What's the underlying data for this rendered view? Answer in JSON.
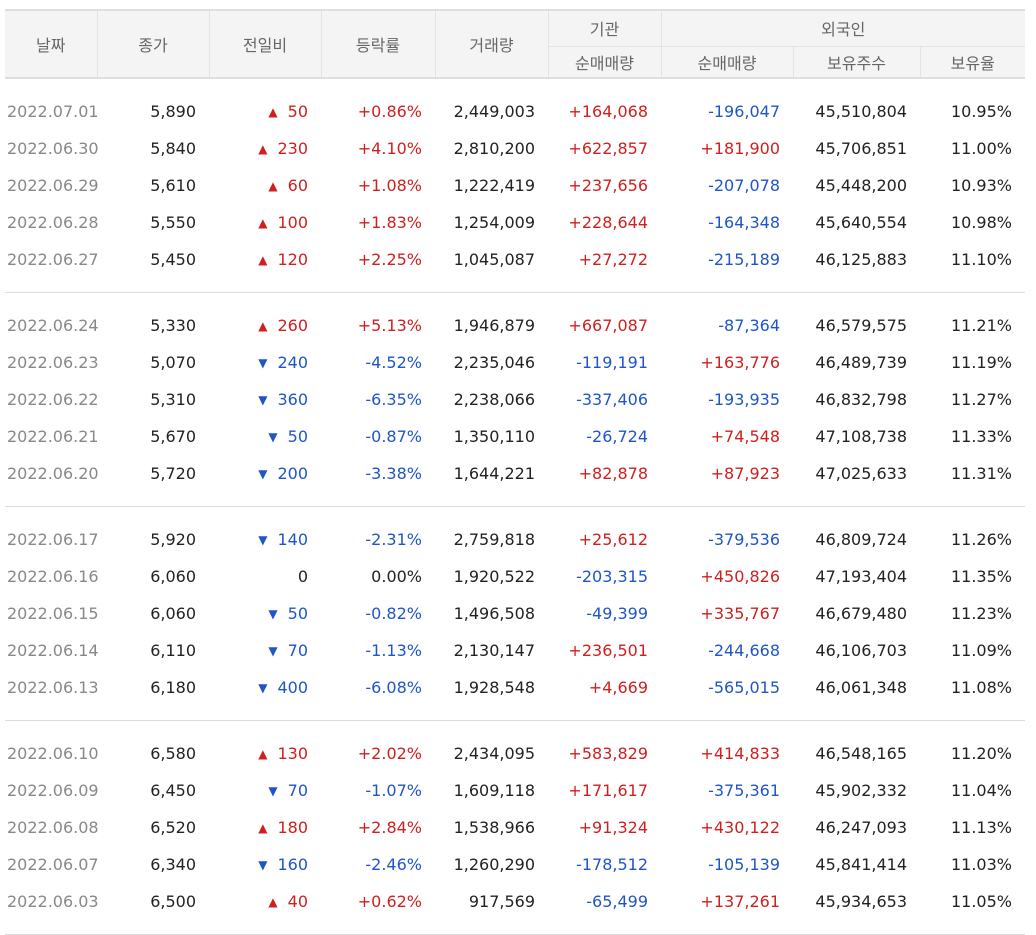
{
  "headers": {
    "date": "날짜",
    "close": "종가",
    "change": "전일비",
    "rate": "등락률",
    "volume": "거래량",
    "institution": "기관",
    "foreign": "외국인",
    "inst_net": "순매매량",
    "foreign_net": "순매매량",
    "holdings": "보유주수",
    "holding_ratio": "보유율"
  },
  "groups": [
    [
      {
        "date": "2022.07.01",
        "close": "5,890",
        "dir": "up",
        "change": "50",
        "rate": "+0.86%",
        "volume": "2,449,003",
        "inst": "+164,068",
        "foreign": "-196,047",
        "holdings": "45,510,804",
        "ratio": "10.95%"
      },
      {
        "date": "2022.06.30",
        "close": "5,840",
        "dir": "up",
        "change": "230",
        "rate": "+4.10%",
        "volume": "2,810,200",
        "inst": "+622,857",
        "foreign": "+181,900",
        "holdings": "45,706,851",
        "ratio": "11.00%"
      },
      {
        "date": "2022.06.29",
        "close": "5,610",
        "dir": "up",
        "change": "60",
        "rate": "+1.08%",
        "volume": "1,222,419",
        "inst": "+237,656",
        "foreign": "-207,078",
        "holdings": "45,448,200",
        "ratio": "10.93%"
      },
      {
        "date": "2022.06.28",
        "close": "5,550",
        "dir": "up",
        "change": "100",
        "rate": "+1.83%",
        "volume": "1,254,009",
        "inst": "+228,644",
        "foreign": "-164,348",
        "holdings": "45,640,554",
        "ratio": "10.98%"
      },
      {
        "date": "2022.06.27",
        "close": "5,450",
        "dir": "up",
        "change": "120",
        "rate": "+2.25%",
        "volume": "1,045,087",
        "inst": "+27,272",
        "foreign": "-215,189",
        "holdings": "46,125,883",
        "ratio": "11.10%"
      }
    ],
    [
      {
        "date": "2022.06.24",
        "close": "5,330",
        "dir": "up",
        "change": "260",
        "rate": "+5.13%",
        "volume": "1,946,879",
        "inst": "+667,087",
        "foreign": "-87,364",
        "holdings": "46,579,575",
        "ratio": "11.21%"
      },
      {
        "date": "2022.06.23",
        "close": "5,070",
        "dir": "down",
        "change": "240",
        "rate": "-4.52%",
        "volume": "2,235,046",
        "inst": "-119,191",
        "foreign": "+163,776",
        "holdings": "46,489,739",
        "ratio": "11.19%"
      },
      {
        "date": "2022.06.22",
        "close": "5,310",
        "dir": "down",
        "change": "360",
        "rate": "-6.35%",
        "volume": "2,238,066",
        "inst": "-337,406",
        "foreign": "-193,935",
        "holdings": "46,832,798",
        "ratio": "11.27%"
      },
      {
        "date": "2022.06.21",
        "close": "5,670",
        "dir": "down",
        "change": "50",
        "rate": "-0.87%",
        "volume": "1,350,110",
        "inst": "-26,724",
        "foreign": "+74,548",
        "holdings": "47,108,738",
        "ratio": "11.33%"
      },
      {
        "date": "2022.06.20",
        "close": "5,720",
        "dir": "down",
        "change": "200",
        "rate": "-3.38%",
        "volume": "1,644,221",
        "inst": "+82,878",
        "foreign": "+87,923",
        "holdings": "47,025,633",
        "ratio": "11.31%"
      }
    ],
    [
      {
        "date": "2022.06.17",
        "close": "5,920",
        "dir": "down",
        "change": "140",
        "rate": "-2.31%",
        "volume": "2,759,818",
        "inst": "+25,612",
        "foreign": "-379,536",
        "holdings": "46,809,724",
        "ratio": "11.26%"
      },
      {
        "date": "2022.06.16",
        "close": "6,060",
        "dir": "none",
        "change": "0",
        "rate": "0.00%",
        "volume": "1,920,522",
        "inst": "-203,315",
        "foreign": "+450,826",
        "holdings": "47,193,404",
        "ratio": "11.35%"
      },
      {
        "date": "2022.06.15",
        "close": "6,060",
        "dir": "down",
        "change": "50",
        "rate": "-0.82%",
        "volume": "1,496,508",
        "inst": "-49,399",
        "foreign": "+335,767",
        "holdings": "46,679,480",
        "ratio": "11.23%"
      },
      {
        "date": "2022.06.14",
        "close": "6,110",
        "dir": "down",
        "change": "70",
        "rate": "-1.13%",
        "volume": "2,130,147",
        "inst": "+236,501",
        "foreign": "-244,668",
        "holdings": "46,106,703",
        "ratio": "11.09%"
      },
      {
        "date": "2022.06.13",
        "close": "6,180",
        "dir": "down",
        "change": "400",
        "rate": "-6.08%",
        "volume": "1,928,548",
        "inst": "+4,669",
        "foreign": "-565,015",
        "holdings": "46,061,348",
        "ratio": "11.08%"
      }
    ],
    [
      {
        "date": "2022.06.10",
        "close": "6,580",
        "dir": "up",
        "change": "130",
        "rate": "+2.02%",
        "volume": "2,434,095",
        "inst": "+583,829",
        "foreign": "+414,833",
        "holdings": "46,548,165",
        "ratio": "11.20%"
      },
      {
        "date": "2022.06.09",
        "close": "6,450",
        "dir": "down",
        "change": "70",
        "rate": "-1.07%",
        "volume": "1,609,118",
        "inst": "+171,617",
        "foreign": "-375,361",
        "holdings": "45,902,332",
        "ratio": "11.04%"
      },
      {
        "date": "2022.06.08",
        "close": "6,520",
        "dir": "up",
        "change": "180",
        "rate": "+2.84%",
        "volume": "1,538,966",
        "inst": "+91,324",
        "foreign": "+430,122",
        "holdings": "46,247,093",
        "ratio": "11.13%"
      },
      {
        "date": "2022.06.07",
        "close": "6,340",
        "dir": "down",
        "change": "160",
        "rate": "-2.46%",
        "volume": "1,260,290",
        "inst": "-178,512",
        "foreign": "-105,139",
        "holdings": "45,841,414",
        "ratio": "11.03%"
      },
      {
        "date": "2022.06.03",
        "close": "6,500",
        "dir": "up",
        "change": "40",
        "rate": "+0.62%",
        "volume": "917,569",
        "inst": "-65,499",
        "foreign": "+137,261",
        "holdings": "45,934,653",
        "ratio": "11.05%"
      }
    ]
  ],
  "colors": {
    "up": "#d01f1f",
    "down": "#1f55c8",
    "header_bg": "#f4f4f4",
    "date": "#888888"
  },
  "icons": {
    "up": "triangle-up-icon",
    "down": "triangle-down-icon"
  }
}
